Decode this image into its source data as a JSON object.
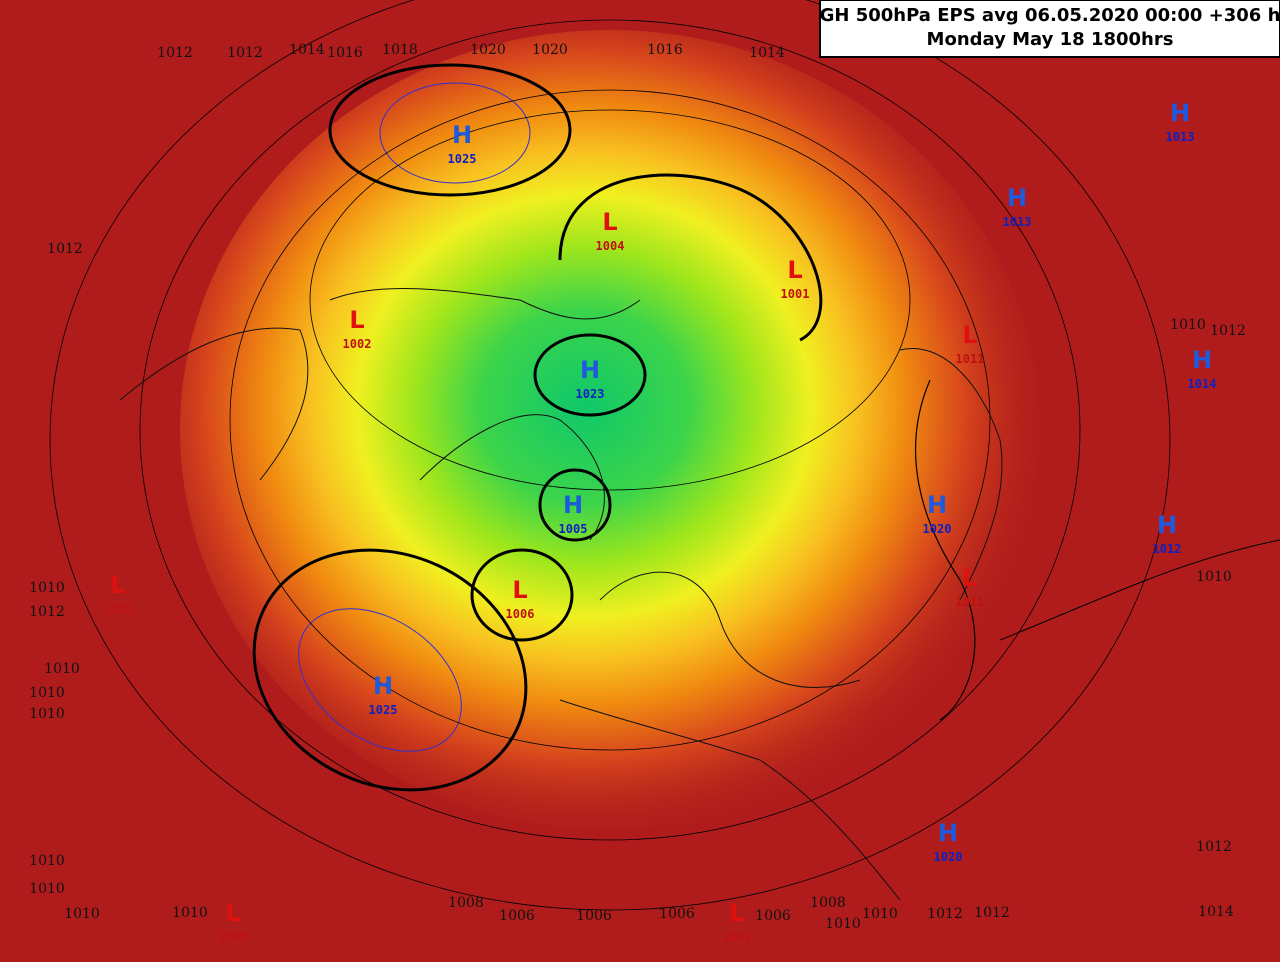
{
  "header": {
    "title": [
      "GH 500hPa EPS avg 06.05.2020 00:00 +306 h",
      "Monday May 18 1800hrs"
    ]
  },
  "centers": [
    {
      "letter": "H",
      "pressure": 1025
    },
    {
      "letter": "L",
      "pressure": 1004
    },
    {
      "letter": "L",
      "pressure": 1001
    },
    {
      "letter": "L",
      "pressure": 1002
    },
    {
      "letter": "H",
      "pressure": 1023
    },
    {
      "letter": "H",
      "pressure": 1013
    },
    {
      "letter": "H",
      "pressure": 1013
    },
    {
      "letter": "L",
      "pressure": 1011
    },
    {
      "letter": "H",
      "pressure": 1014
    },
    {
      "letter": "H",
      "pressure": 1005
    },
    {
      "letter": "H",
      "pressure": 1020
    },
    {
      "letter": "H",
      "pressure": 1012
    },
    {
      "letter": "L",
      "pressure": 1006
    },
    {
      "letter": "L",
      "pressure": 1010
    },
    {
      "letter": "L",
      "pressure": 1011
    },
    {
      "letter": "H",
      "pressure": 1025
    },
    {
      "letter": "H",
      "pressure": 1020
    },
    {
      "letter": "L",
      "pressure": 1009
    },
    {
      "letter": "L",
      "pressure": 1007
    }
  ],
  "isobar_labels": [
    1012,
    1012,
    1014,
    1016,
    1018,
    1020,
    1020,
    1016,
    1014,
    1012,
    1010,
    1012,
    1010,
    1010,
    1010,
    1010,
    1012,
    1014,
    1010,
    1010,
    1010,
    1010,
    1008,
    1006,
    1006,
    1006,
    1006,
    1008,
    1010,
    1010,
    1012,
    1012,
    1010,
    1012
  ]
}
